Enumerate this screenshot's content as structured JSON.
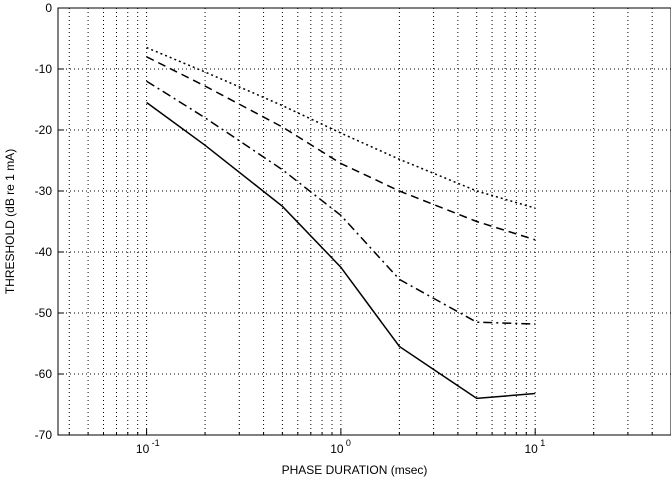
{
  "chart_data": {
    "type": "line",
    "title": "",
    "xlabel": "PHASE DURATION (msec)",
    "ylabel": "THRESHOLD (dB re 1 mA)",
    "x_scale": "log",
    "xlim": [
      0.035,
      50
    ],
    "ylim": [
      -70,
      0
    ],
    "grid": true,
    "x_ticks": [
      {
        "value": 0.1,
        "base": "10",
        "exp": "-1"
      },
      {
        "value": 1,
        "base": "10",
        "exp": "0"
      },
      {
        "value": 10,
        "base": "10",
        "exp": "1"
      }
    ],
    "y_ticks": [
      {
        "value": 0,
        "label": "0"
      },
      {
        "value": -10,
        "label": "-10"
      },
      {
        "value": -20,
        "label": "-20"
      },
      {
        "value": -30,
        "label": "-30"
      },
      {
        "value": -40,
        "label": "-40"
      },
      {
        "value": -50,
        "label": "-50"
      },
      {
        "value": -60,
        "label": "-60"
      },
      {
        "value": -70,
        "label": "-70"
      }
    ],
    "series": [
      {
        "style": "dotted",
        "x": [
          0.1,
          0.2,
          0.5,
          1,
          2,
          5,
          10
        ],
        "y": [
          -6.5,
          -10.5,
          -16.0,
          -20.5,
          -24.8,
          -30.0,
          -32.8
        ]
      },
      {
        "style": "dashed",
        "x": [
          0.1,
          0.2,
          0.5,
          1,
          2,
          5,
          10
        ],
        "y": [
          -8.0,
          -12.8,
          -19.5,
          -25.5,
          -30.0,
          -35.0,
          -38.0
        ]
      },
      {
        "style": "dashdot",
        "x": [
          0.1,
          0.2,
          0.5,
          1,
          2,
          5,
          10
        ],
        "y": [
          -12.0,
          -18.0,
          -26.5,
          -34.0,
          -44.5,
          -51.5,
          -51.8
        ]
      },
      {
        "style": "solid",
        "x": [
          0.1,
          0.2,
          0.5,
          1,
          2,
          5,
          10
        ],
        "y": [
          -15.5,
          -22.5,
          -32.5,
          -42.5,
          -55.5,
          -64.0,
          -63.2
        ]
      }
    ]
  }
}
